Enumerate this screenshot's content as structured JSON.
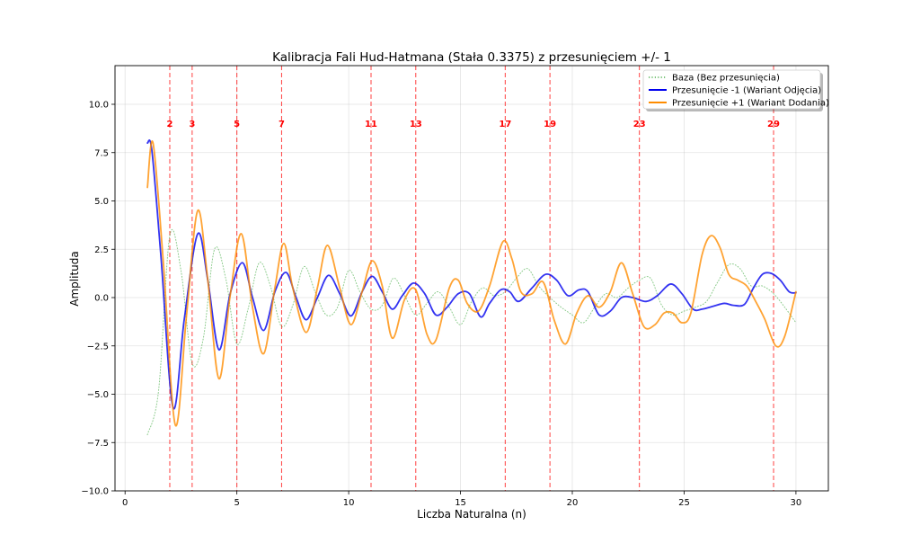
{
  "chart_data": {
    "type": "line",
    "title": "Kalibracja Fali Hud-Hatmana (Stała 0.3375) z przesunięciem +/- 1",
    "xlabel": "Liczba Naturalna (n)",
    "ylabel": "Amplituda",
    "xlim": [
      -0.45,
      31.45
    ],
    "ylim": [
      -10,
      12
    ],
    "xticks": [
      0,
      5,
      10,
      15,
      20,
      25,
      30
    ],
    "yticks": [
      -10.0,
      -7.5,
      -5.0,
      -2.5,
      0.0,
      2.5,
      5.0,
      7.5,
      10.0
    ],
    "ytick_labels": [
      "−10.0",
      "−7.5",
      "−5.0",
      "−2.5",
      "0.0",
      "2.5",
      "5.0",
      "7.5",
      "10.0"
    ],
    "grid": true,
    "legend_position": "top-right",
    "primes": [
      2,
      3,
      5,
      7,
      11,
      13,
      17,
      19,
      23,
      29
    ],
    "prime_label_y": 9.0,
    "series": [
      {
        "name": "Baza (Bez przesunięcia)",
        "color": "#2ca02c",
        "style": "dotted",
        "x": [
          1,
          1.5,
          2,
          2.5,
          3,
          3.5,
          4,
          4.5,
          5,
          5.5,
          6,
          6.5,
          7,
          7.5,
          8,
          8.5,
          9,
          9.5,
          10,
          10.5,
          11,
          11.5,
          12,
          12.5,
          13,
          13.5,
          14,
          14.5,
          15,
          15.5,
          16,
          16.5,
          17,
          17.5,
          18,
          18.5,
          19,
          19.5,
          20,
          20.5,
          21,
          21.5,
          22,
          22.5,
          23,
          23.5,
          24,
          24.5,
          25,
          25.5,
          26,
          26.5,
          27,
          27.5,
          28,
          28.5,
          29,
          29.5,
          30
        ],
        "y": [
          -7.1,
          -4.8,
          3.2,
          1.4,
          -3.4,
          -2.1,
          2.5,
          1.0,
          -2.4,
          -0.6,
          1.8,
          0.6,
          -1.5,
          -0.4,
          1.6,
          0.3,
          -0.9,
          -0.5,
          1.4,
          0.3,
          -0.6,
          -0.4,
          1.0,
          0.1,
          -0.9,
          -0.3,
          0.3,
          -0.5,
          -1.4,
          -0.2,
          0.5,
          0.1,
          0.3,
          1.0,
          1.5,
          0.6,
          0.0,
          -0.5,
          -0.9,
          -1.3,
          -0.5,
          0.2,
          0.0,
          0.5,
          0.9,
          1.0,
          -0.4,
          -0.9,
          -0.7,
          -0.5,
          -0.2,
          0.8,
          1.7,
          1.5,
          0.6,
          0.6,
          0.2,
          -0.5,
          -1.3
        ]
      },
      {
        "name": "Przesunięcie -1 (Wariant Odjęcia)",
        "color": "#0000ee",
        "style": "solid",
        "x": [
          1,
          1.2,
          1.6,
          2.15,
          2.65,
          3.25,
          3.7,
          4.2,
          4.7,
          5.25,
          5.7,
          6.2,
          6.7,
          7.2,
          7.65,
          8.1,
          8.6,
          9.1,
          9.6,
          10.1,
          10.6,
          11.05,
          11.5,
          11.95,
          12.4,
          12.9,
          13.4,
          13.9,
          14.4,
          14.9,
          15.4,
          15.9,
          16.3,
          16.8,
          17.2,
          17.6,
          18.2,
          18.8,
          19.3,
          19.8,
          20.3,
          20.7,
          21.2,
          21.7,
          22.2,
          22.7,
          23.3,
          23.8,
          24.4,
          24.9,
          25.4,
          25.8,
          26.3,
          26.8,
          27.2,
          27.7,
          28.1,
          28.5,
          28.9,
          29.3,
          29.7,
          30
        ],
        "y": [
          8.0,
          7.6,
          2.2,
          -5.7,
          -1.1,
          3.3,
          0.9,
          -2.7,
          0.2,
          1.8,
          0.0,
          -1.7,
          0.3,
          1.3,
          0.0,
          -1.15,
          0.0,
          1.15,
          0.2,
          -0.95,
          0.3,
          1.1,
          0.3,
          -0.6,
          0.1,
          0.75,
          0.2,
          -0.9,
          -0.5,
          0.2,
          0.2,
          -1.0,
          -0.3,
          0.4,
          0.3,
          -0.2,
          0.5,
          1.2,
          0.9,
          0.1,
          0.4,
          0.3,
          -0.9,
          -0.7,
          0.0,
          0.0,
          -0.2,
          0.1,
          0.7,
          0.2,
          -0.6,
          -0.6,
          -0.45,
          -0.3,
          -0.4,
          -0.35,
          0.5,
          1.2,
          1.25,
          0.9,
          0.3,
          0.25
        ]
      },
      {
        "name": "Przesunięcie +1 (Wariant Dodania)",
        "color": "#ff8c00",
        "style": "solid",
        "x": [
          1,
          1.25,
          1.7,
          2.25,
          2.75,
          3.25,
          3.7,
          4.2,
          4.7,
          5.2,
          5.7,
          6.2,
          6.7,
          7.1,
          7.5,
          8.1,
          8.6,
          9.05,
          9.6,
          10.1,
          10.6,
          11.05,
          11.5,
          11.95,
          12.5,
          13.0,
          13.5,
          13.9,
          14.5,
          14.9,
          15.3,
          15.8,
          16.3,
          16.9,
          17.3,
          17.7,
          18.2,
          18.7,
          19.2,
          19.7,
          20.2,
          20.7,
          21.2,
          21.7,
          22.2,
          22.7,
          23.2,
          23.7,
          24.1,
          24.5,
          24.9,
          25.3,
          25.8,
          26.2,
          26.6,
          27.0,
          27.4,
          27.8,
          28.2,
          28.6,
          29.1,
          29.5,
          30
        ],
        "y": [
          5.7,
          8.0,
          2.0,
          -6.6,
          -0.9,
          4.5,
          0.9,
          -4.2,
          0.1,
          3.3,
          -0.5,
          -2.9,
          0.5,
          2.8,
          0.5,
          -1.8,
          0.5,
          2.7,
          0.5,
          -1.4,
          0.3,
          1.9,
          0.6,
          -2.1,
          -0.1,
          0.4,
          -1.9,
          -2.2,
          0.5,
          0.9,
          -0.3,
          -0.7,
          0.6,
          2.9,
          2.0,
          0.3,
          0.2,
          0.8,
          -1.2,
          -2.4,
          -0.8,
          0.1,
          -0.5,
          0.3,
          1.8,
          0.2,
          -1.5,
          -1.4,
          -0.8,
          -0.8,
          -1.3,
          -0.8,
          2.2,
          3.2,
          2.6,
          1.2,
          0.9,
          0.6,
          -0.2,
          -1.1,
          -2.5,
          -2.0,
          0.3
        ]
      }
    ]
  }
}
